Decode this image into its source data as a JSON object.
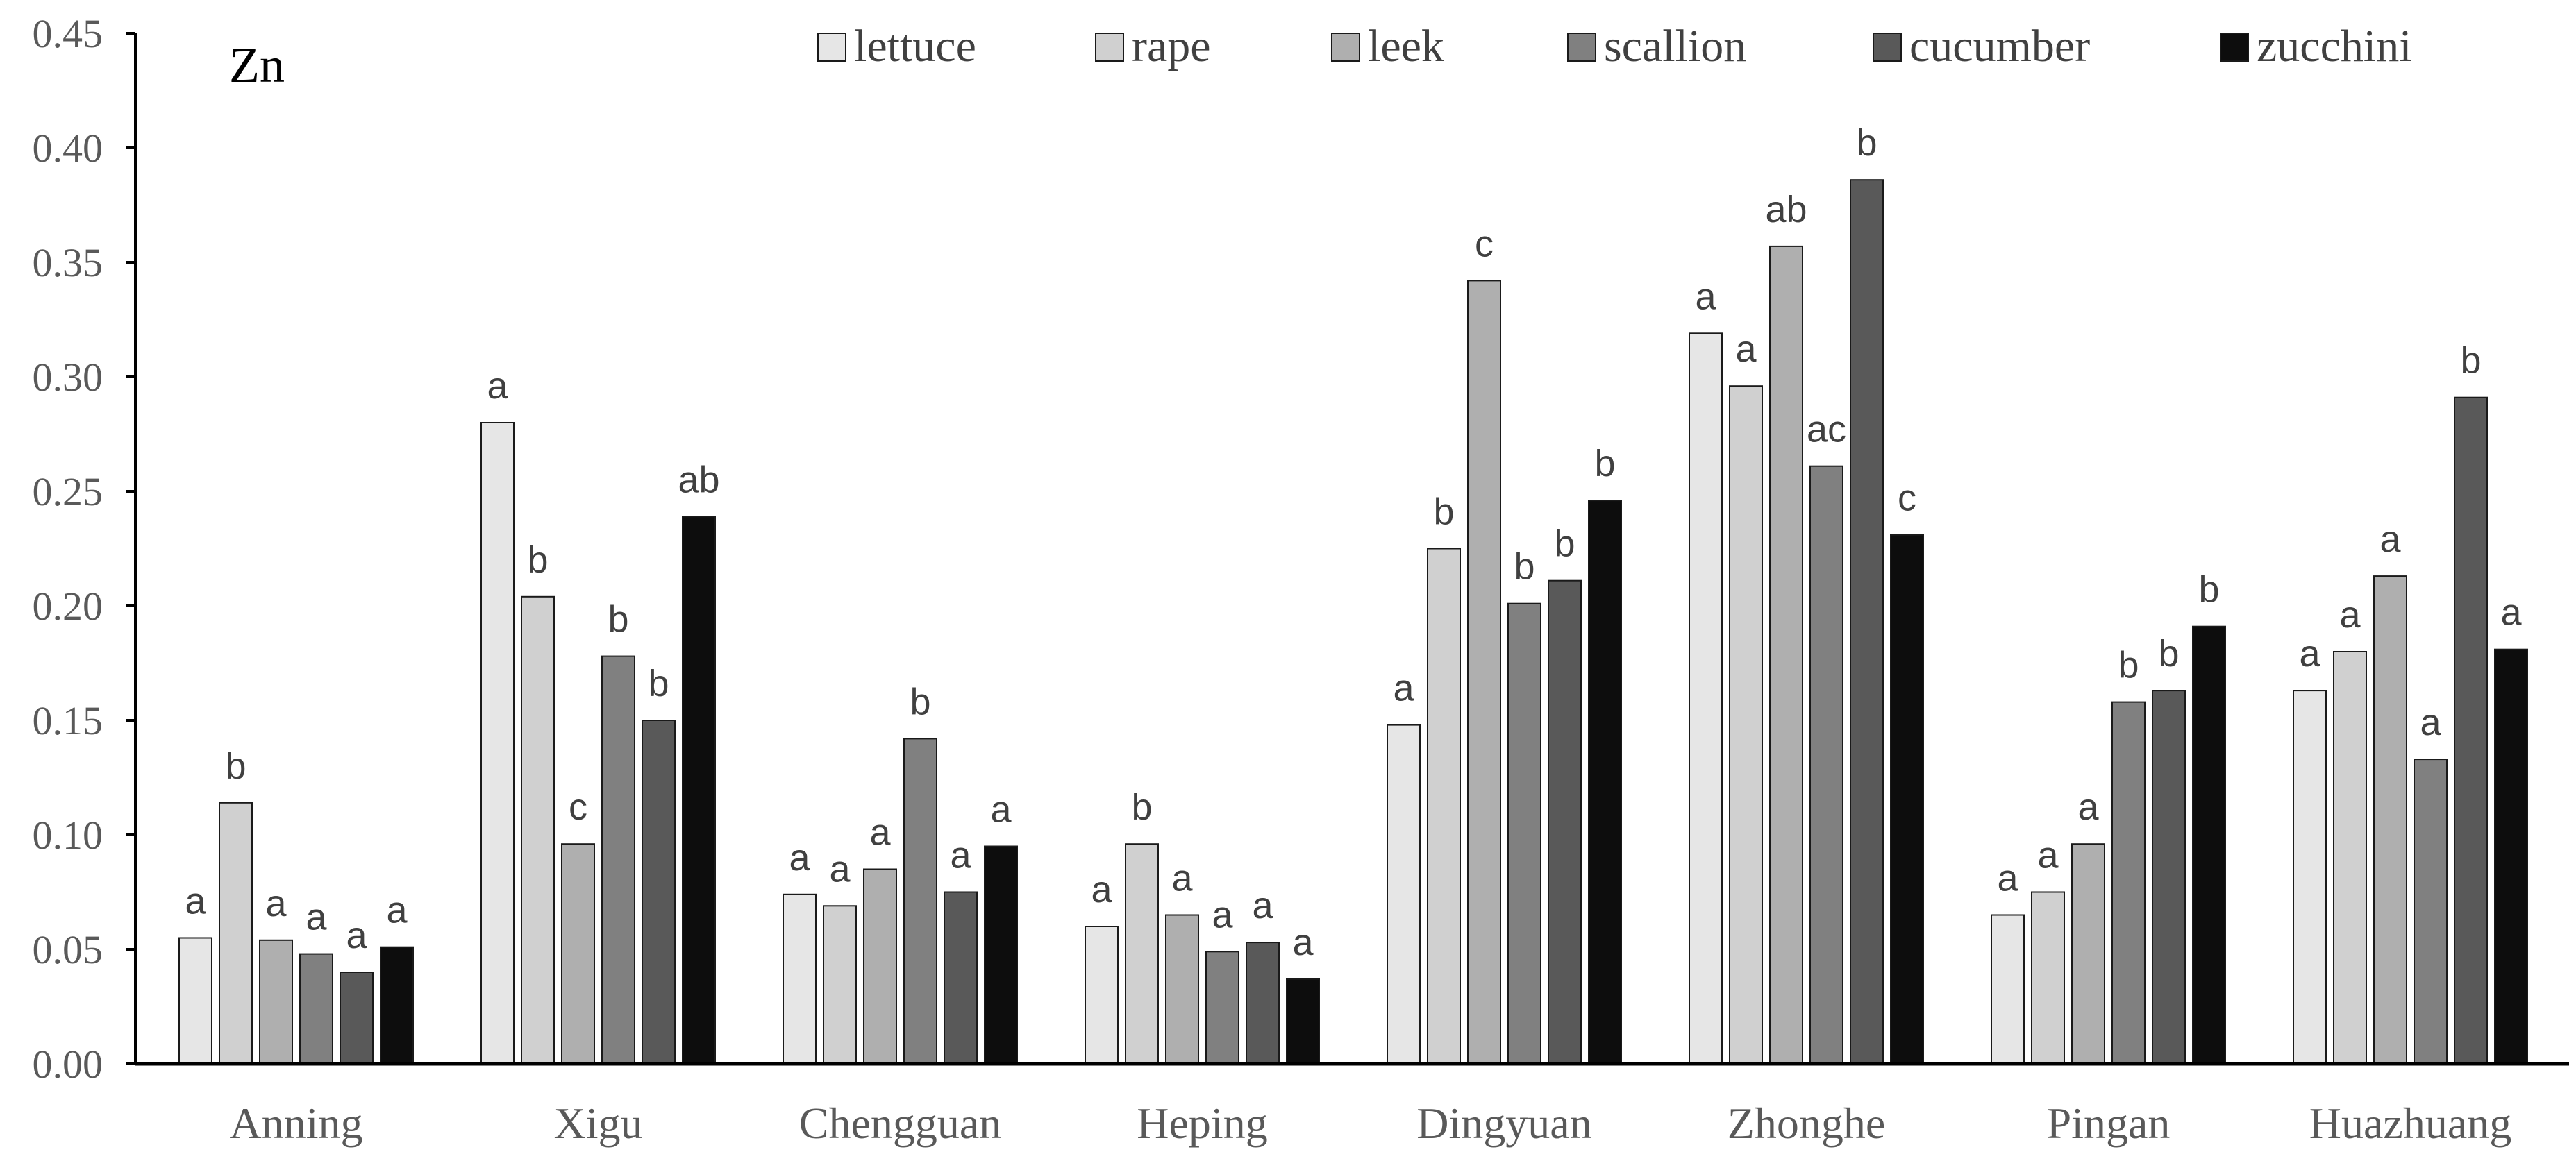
{
  "chart_data": {
    "type": "bar",
    "title": "Zn",
    "xlabel": "",
    "ylabel": "",
    "ylim": [
      0,
      0.45
    ],
    "yticks": [
      "0.00",
      "0.05",
      "0.10",
      "0.15",
      "0.20",
      "0.25",
      "0.30",
      "0.35",
      "0.40",
      "0.45"
    ],
    "grid": false,
    "legend_position": "top",
    "categories": [
      "Anning",
      "Xigu",
      "Chengguan",
      "Heping",
      "Dingyuan",
      "Zhonghe",
      "Pingan",
      "Huazhuang"
    ],
    "series": [
      {
        "name": "lettuce",
        "color": "#e6e6e6",
        "values": [
          0.055,
          0.28,
          0.074,
          0.06,
          0.148,
          0.319,
          0.065,
          0.163
        ],
        "labels": [
          "a",
          "a",
          "a",
          "a",
          "a",
          "a",
          "a",
          "a"
        ]
      },
      {
        "name": "rape",
        "color": "#d0d0d0",
        "values": [
          0.114,
          0.204,
          0.069,
          0.096,
          0.225,
          0.296,
          0.075,
          0.18
        ],
        "labels": [
          "b",
          "b",
          "a",
          "b",
          "b",
          "a",
          "a",
          "a"
        ]
      },
      {
        "name": "leek",
        "color": "#afafaf",
        "values": [
          0.054,
          0.096,
          0.085,
          0.065,
          0.342,
          0.357,
          0.096,
          0.213
        ],
        "labels": [
          "a",
          "c",
          "a",
          "a",
          "c",
          "ab",
          "a",
          "a"
        ]
      },
      {
        "name": "scallion",
        "color": "#808080",
        "values": [
          0.048,
          0.178,
          0.142,
          0.049,
          0.201,
          0.261,
          0.158,
          0.133
        ],
        "labels": [
          "a",
          "b",
          "b",
          "a",
          "b",
          "ac",
          "b",
          "a"
        ]
      },
      {
        "name": "cucumber",
        "color": "#595959",
        "values": [
          0.04,
          0.15,
          0.075,
          0.053,
          0.211,
          0.386,
          0.163,
          0.291
        ],
        "labels": [
          "a",
          "b",
          "a",
          "a",
          "b",
          "b",
          "b",
          "b"
        ]
      },
      {
        "name": "zucchini",
        "color": "#0d0d0d",
        "values": [
          0.051,
          0.239,
          0.095,
          0.037,
          0.246,
          0.231,
          0.191,
          0.181
        ],
        "labels": [
          "a",
          "ab",
          "a",
          "a",
          "b",
          "c",
          "b",
          "a"
        ]
      }
    ]
  }
}
